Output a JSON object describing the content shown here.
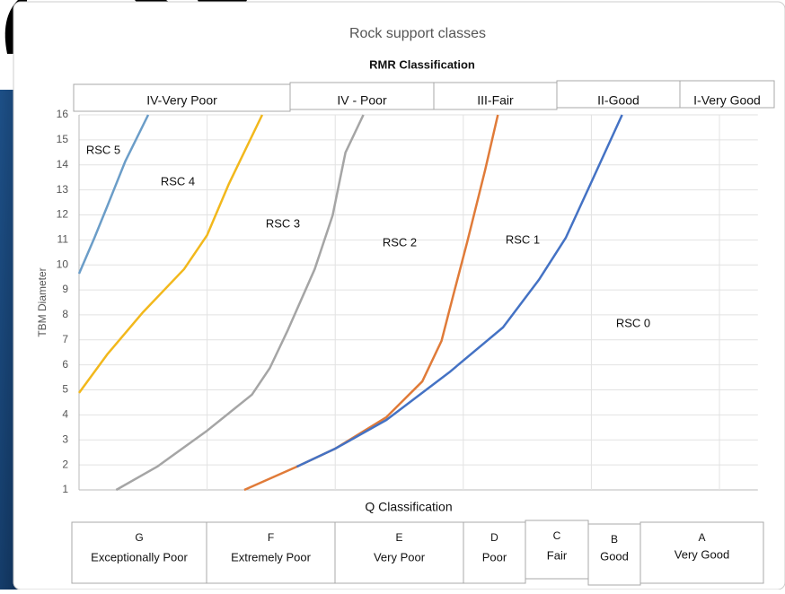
{
  "chart_data": {
    "type": "line",
    "title": "Rock support classes",
    "subtitle": "RMR Classification",
    "y_label": "TBM Diameter",
    "x_label": "Q Classification",
    "ylim": [
      1,
      16
    ],
    "yticks": [
      1,
      2,
      3,
      4,
      5,
      6,
      7,
      8,
      9,
      10,
      11,
      12,
      13,
      14,
      15,
      16
    ],
    "xlim": [
      0,
      5.3
    ],
    "xticks": [
      0,
      1,
      2,
      3,
      4,
      5
    ],
    "grid": true,
    "series": [
      {
        "color": "#6b9dc8",
        "x": [
          0,
          0.12,
          0.22,
          0.36,
          0.54
        ],
        "values": [
          9.65,
          11.08,
          12.34,
          14.13,
          16
        ]
      },
      {
        "color": "#f2b81c",
        "x": [
          0,
          0.22,
          0.5,
          0.82,
          1.0,
          1.17,
          1.43
        ],
        "values": [
          4.88,
          6.42,
          8.11,
          9.83,
          11.19,
          13.24,
          16
        ]
      },
      {
        "color": "#a5a5a5",
        "x": [
          0.29,
          0.61,
          1.0,
          1.35,
          1.49,
          1.63,
          1.84,
          1.98,
          2.08,
          2.22
        ],
        "values": [
          1,
          1.93,
          3.37,
          4.81,
          5.88,
          7.39,
          9.83,
          11.98,
          14.49,
          16
        ]
      },
      {
        "color": "#e07b39",
        "x": [
          1.29,
          1.7,
          2.0,
          2.4,
          2.68,
          2.83,
          2.92,
          3.03,
          3.17,
          3.27
        ],
        "values": [
          1,
          1.93,
          2.65,
          3.91,
          5.34,
          6.96,
          8.75,
          10.9,
          13.78,
          16
        ]
      },
      {
        "color": "#4472c4",
        "x": [
          1.7,
          2.0,
          2.4,
          2.89,
          3.31,
          3.59,
          3.8,
          4.01,
          4.24
        ],
        "values": [
          1.93,
          2.65,
          3.8,
          5.7,
          7.5,
          9.4,
          11.08,
          13.42,
          16
        ]
      }
    ],
    "annotations": [
      "RSC 5",
      "RSC 4",
      "RSC 3",
      "RSC 2",
      "RSC 1",
      "RSC 0"
    ],
    "rmr_classes": [
      "IV-Very Poor",
      "IV - Poor",
      "III-Fair",
      "II-Good",
      "I-Very Good"
    ],
    "q_classes": [
      {
        "letter": "G",
        "label": "Exceptionally Poor"
      },
      {
        "letter": "F",
        "label": "Extremely Poor"
      },
      {
        "letter": "E",
        "label": "Very Poor"
      },
      {
        "letter": "D",
        "label": "Poor"
      },
      {
        "letter": "C",
        "label": "Fair"
      },
      {
        "letter": "B",
        "label": "Good"
      },
      {
        "letter": "A",
        "label": "Very Good"
      }
    ]
  }
}
